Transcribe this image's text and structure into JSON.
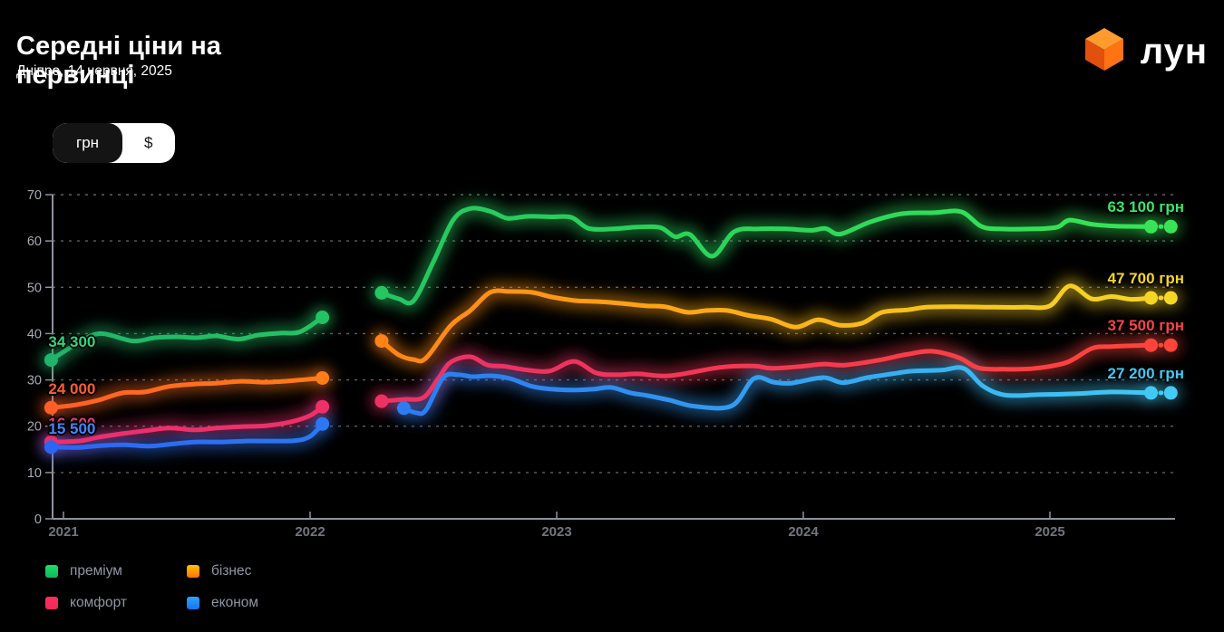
{
  "header": {
    "title": "Середні ціни на первинці",
    "subtitle": "Дніпро, 14 червня, 2025",
    "logo_text": "лун"
  },
  "currency_toggle": {
    "options": [
      {
        "label": "грн",
        "selected": true
      },
      {
        "label": "$",
        "selected": false
      }
    ]
  },
  "legend": [
    {
      "label": "преміум",
      "colors": [
        "#1fdc66",
        "#12b85c"
      ]
    },
    {
      "label": "бізнес",
      "colors": [
        "#ffc107",
        "#ff7300"
      ]
    },
    {
      "label": "комфорт",
      "colors": [
        "#fb2e62",
        "#ee2b52"
      ]
    },
    {
      "label": "економ",
      "colors": [
        "#2ea1ff",
        "#1675f2"
      ]
    }
  ],
  "chart_data": {
    "type": "line",
    "title": "Середні ціни на первинці",
    "x_ticks": [
      2021,
      2022,
      2023,
      2024,
      2025
    ],
    "y_ticks": [
      0,
      10,
      20,
      30,
      40,
      50,
      60,
      70
    ],
    "ylim": [
      0,
      70
    ],
    "x_range": [
      2020.9,
      2025.55
    ],
    "grid": "dashed-horizontal",
    "values_unit": "тис. грн",
    "note": "gap in all series during 2022 (Feb–Apr); last point after dash is the current value",
    "series": [
      {
        "id": "premium",
        "name": "преміум",
        "start_label": "34 300",
        "end_label": "63 100 грн",
        "label_start_color": "#2fd87d",
        "label_end_color": "#3be468",
        "gradient": [
          [
            0,
            "#21b46a"
          ],
          [
            0.4,
            "#26cc5e"
          ],
          [
            1,
            "#38e556"
          ]
        ],
        "segments": [
          [
            [
              2020.95,
              34.3
            ],
            [
              2021.06,
              38.0
            ],
            [
              2021.15,
              40.0
            ],
            [
              2021.28,
              38.4
            ],
            [
              2021.37,
              39.1
            ],
            [
              2021.46,
              39.3
            ],
            [
              2021.54,
              39.1
            ],
            [
              2021.62,
              39.5
            ],
            [
              2021.71,
              38.8
            ],
            [
              2021.79,
              39.7
            ],
            [
              2021.88,
              40.1
            ],
            [
              2021.96,
              40.4
            ],
            [
              2022.05,
              43.5
            ]
          ],
          [
            [
              2022.29,
              48.8
            ],
            [
              2022.36,
              47.5
            ],
            [
              2022.42,
              47.1
            ],
            [
              2022.5,
              55.5
            ],
            [
              2022.58,
              64.5
            ],
            [
              2022.65,
              67.0
            ],
            [
              2022.73,
              66.4
            ],
            [
              2022.8,
              64.9
            ],
            [
              2022.88,
              65.3
            ],
            [
              2022.98,
              65.2
            ],
            [
              2023.06,
              65.1
            ],
            [
              2023.13,
              62.7
            ],
            [
              2023.23,
              62.6
            ],
            [
              2023.33,
              63.0
            ],
            [
              2023.42,
              62.9
            ],
            [
              2023.48,
              60.9
            ],
            [
              2023.54,
              61.4
            ],
            [
              2023.63,
              56.7
            ],
            [
              2023.72,
              62.0
            ],
            [
              2023.82,
              62.6
            ],
            [
              2023.93,
              62.6
            ],
            [
              2024.03,
              62.3
            ],
            [
              2024.09,
              62.7
            ],
            [
              2024.15,
              61.5
            ],
            [
              2024.27,
              64.1
            ],
            [
              2024.4,
              65.9
            ],
            [
              2024.53,
              66.1
            ],
            [
              2024.64,
              66.3
            ],
            [
              2024.72,
              63.2
            ],
            [
              2024.79,
              62.6
            ],
            [
              2024.94,
              62.6
            ],
            [
              2025.03,
              63.0
            ],
            [
              2025.08,
              64.5
            ],
            [
              2025.17,
              63.6
            ],
            [
              2025.27,
              63.2
            ],
            [
              2025.41,
              63.1
            ]
          ]
        ],
        "final_point": [
          2025.49,
          63.1
        ]
      },
      {
        "id": "biznes",
        "name": "бізнес",
        "start_label": "24 000",
        "end_label": "47 700 грн",
        "label_start_color": "#ff5c35",
        "label_end_color": "#f6d525",
        "gradient": [
          [
            0,
            "#ff5f25"
          ],
          [
            0.25,
            "#ff7d18"
          ],
          [
            0.55,
            "#ffa613"
          ],
          [
            0.8,
            "#f6c51e"
          ],
          [
            1,
            "#f6d726"
          ]
        ],
        "segments": [
          [
            [
              2020.95,
              24.0
            ],
            [
              2021.05,
              24.6
            ],
            [
              2021.14,
              25.6
            ],
            [
              2021.24,
              27.2
            ],
            [
              2021.33,
              27.4
            ],
            [
              2021.43,
              28.6
            ],
            [
              2021.53,
              29.1
            ],
            [
              2021.62,
              29.3
            ],
            [
              2021.72,
              29.7
            ],
            [
              2021.82,
              29.5
            ],
            [
              2021.92,
              29.8
            ],
            [
              2022.05,
              30.4
            ]
          ],
          [
            [
              2022.29,
              38.4
            ],
            [
              2022.36,
              35.4
            ],
            [
              2022.42,
              34.4
            ],
            [
              2022.47,
              34.7
            ],
            [
              2022.57,
              41.7
            ],
            [
              2022.65,
              45.0
            ],
            [
              2022.73,
              48.9
            ],
            [
              2022.81,
              49.1
            ],
            [
              2022.9,
              48.9
            ],
            [
              2022.98,
              47.9
            ],
            [
              2023.08,
              47.1
            ],
            [
              2023.17,
              46.9
            ],
            [
              2023.27,
              46.5
            ],
            [
              2023.36,
              46.0
            ],
            [
              2023.44,
              45.8
            ],
            [
              2023.53,
              44.6
            ],
            [
              2023.61,
              45.0
            ],
            [
              2023.69,
              45.0
            ],
            [
              2023.78,
              43.9
            ],
            [
              2023.87,
              43.1
            ],
            [
              2023.97,
              41.4
            ],
            [
              2024.06,
              43.0
            ],
            [
              2024.15,
              41.8
            ],
            [
              2024.24,
              42.3
            ],
            [
              2024.32,
              44.6
            ],
            [
              2024.42,
              45.1
            ],
            [
              2024.5,
              45.7
            ],
            [
              2024.62,
              45.8
            ],
            [
              2024.78,
              45.7
            ],
            [
              2024.9,
              45.7
            ],
            [
              2025.0,
              46.0
            ],
            [
              2025.08,
              50.3
            ],
            [
              2025.17,
              47.5
            ],
            [
              2025.25,
              48.0
            ],
            [
              2025.33,
              47.4
            ],
            [
              2025.41,
              47.7
            ]
          ]
        ],
        "final_point": [
          2025.49,
          47.7
        ]
      },
      {
        "id": "komfort",
        "name": "комфорт",
        "start_label": "16 600",
        "end_label": "37 500 грн",
        "label_start_color": "#ff3a78",
        "label_end_color": "#ff4343",
        "gradient": [
          [
            0,
            "#ed2e6e"
          ],
          [
            0.45,
            "#ee3360"
          ],
          [
            0.75,
            "#f93c49"
          ],
          [
            1,
            "#ff4538"
          ]
        ],
        "segments": [
          [
            [
              2020.95,
              16.6
            ],
            [
              2021.06,
              16.8
            ],
            [
              2021.14,
              17.6
            ],
            [
              2021.24,
              18.4
            ],
            [
              2021.33,
              19.0
            ],
            [
              2021.43,
              19.6
            ],
            [
              2021.53,
              19.2
            ],
            [
              2021.62,
              19.6
            ],
            [
              2021.72,
              19.9
            ],
            [
              2021.82,
              20.1
            ],
            [
              2021.92,
              20.9
            ],
            [
              2022.0,
              22.3
            ],
            [
              2022.05,
              24.2
            ]
          ],
          [
            [
              2022.29,
              25.4
            ],
            [
              2022.38,
              25.8
            ],
            [
              2022.46,
              26.2
            ],
            [
              2022.52,
              30.3
            ],
            [
              2022.57,
              33.8
            ],
            [
              2022.65,
              35.0
            ],
            [
              2022.72,
              33.2
            ],
            [
              2022.79,
              32.9
            ],
            [
              2022.87,
              32.2
            ],
            [
              2022.97,
              31.9
            ],
            [
              2023.07,
              34.0
            ],
            [
              2023.16,
              31.5
            ],
            [
              2023.24,
              31.1
            ],
            [
              2023.33,
              31.3
            ],
            [
              2023.46,
              30.9
            ],
            [
              2023.66,
              32.7
            ],
            [
              2023.8,
              33.0
            ],
            [
              2023.87,
              32.5
            ],
            [
              2023.99,
              32.9
            ],
            [
              2024.08,
              33.4
            ],
            [
              2024.17,
              33.2
            ],
            [
              2024.3,
              34.2
            ],
            [
              2024.42,
              35.5
            ],
            [
              2024.52,
              36.2
            ],
            [
              2024.63,
              34.8
            ],
            [
              2024.71,
              32.6
            ],
            [
              2024.82,
              32.3
            ],
            [
              2024.94,
              32.5
            ],
            [
              2025.07,
              33.8
            ],
            [
              2025.17,
              36.8
            ],
            [
              2025.25,
              37.2
            ],
            [
              2025.35,
              37.4
            ],
            [
              2025.41,
              37.5
            ]
          ]
        ],
        "final_point": [
          2025.49,
          37.5
        ]
      },
      {
        "id": "ekonom",
        "name": "економ",
        "start_label": "15 500",
        "end_label": "27 200 грн",
        "label_start_color": "#4285ff",
        "label_end_color": "#41c8f5",
        "gradient": [
          [
            0,
            "#2b66f2"
          ],
          [
            0.45,
            "#2e86f0"
          ],
          [
            0.75,
            "#37aff0"
          ],
          [
            1,
            "#43cbf5"
          ]
        ],
        "segments": [
          [
            [
              2020.95,
              15.5
            ],
            [
              2021.06,
              15.4
            ],
            [
              2021.15,
              15.8
            ],
            [
              2021.25,
              16.0
            ],
            [
              2021.35,
              15.7
            ],
            [
              2021.45,
              16.2
            ],
            [
              2021.54,
              16.6
            ],
            [
              2021.64,
              16.6
            ],
            [
              2021.74,
              16.8
            ],
            [
              2021.84,
              16.8
            ],
            [
              2021.94,
              16.9
            ],
            [
              2022.0,
              17.8
            ],
            [
              2022.05,
              20.5
            ]
          ],
          [
            [
              2022.38,
              23.9
            ],
            [
              2022.43,
              22.9
            ],
            [
              2022.47,
              23.5
            ],
            [
              2022.54,
              30.5
            ],
            [
              2022.6,
              31.1
            ],
            [
              2022.66,
              30.7
            ],
            [
              2022.73,
              30.9
            ],
            [
              2022.81,
              30.3
            ],
            [
              2022.9,
              28.6
            ],
            [
              2022.98,
              28.0
            ],
            [
              2023.07,
              27.8
            ],
            [
              2023.15,
              28.0
            ],
            [
              2023.22,
              28.4
            ],
            [
              2023.3,
              27.2
            ],
            [
              2023.37,
              26.6
            ],
            [
              2023.46,
              25.6
            ],
            [
              2023.56,
              24.3
            ],
            [
              2023.71,
              24.4
            ],
            [
              2023.8,
              30.3
            ],
            [
              2023.88,
              29.5
            ],
            [
              2023.95,
              29.3
            ],
            [
              2024.08,
              30.5
            ],
            [
              2024.16,
              29.4
            ],
            [
              2024.26,
              30.5
            ],
            [
              2024.36,
              31.3
            ],
            [
              2024.44,
              31.9
            ],
            [
              2024.56,
              32.1
            ],
            [
              2024.65,
              32.5
            ],
            [
              2024.73,
              28.6
            ],
            [
              2024.82,
              26.7
            ],
            [
              2024.95,
              26.8
            ],
            [
              2025.1,
              27.0
            ],
            [
              2025.25,
              27.4
            ],
            [
              2025.41,
              27.2
            ]
          ]
        ],
        "final_point": [
          2025.49,
          27.2
        ]
      }
    ]
  }
}
